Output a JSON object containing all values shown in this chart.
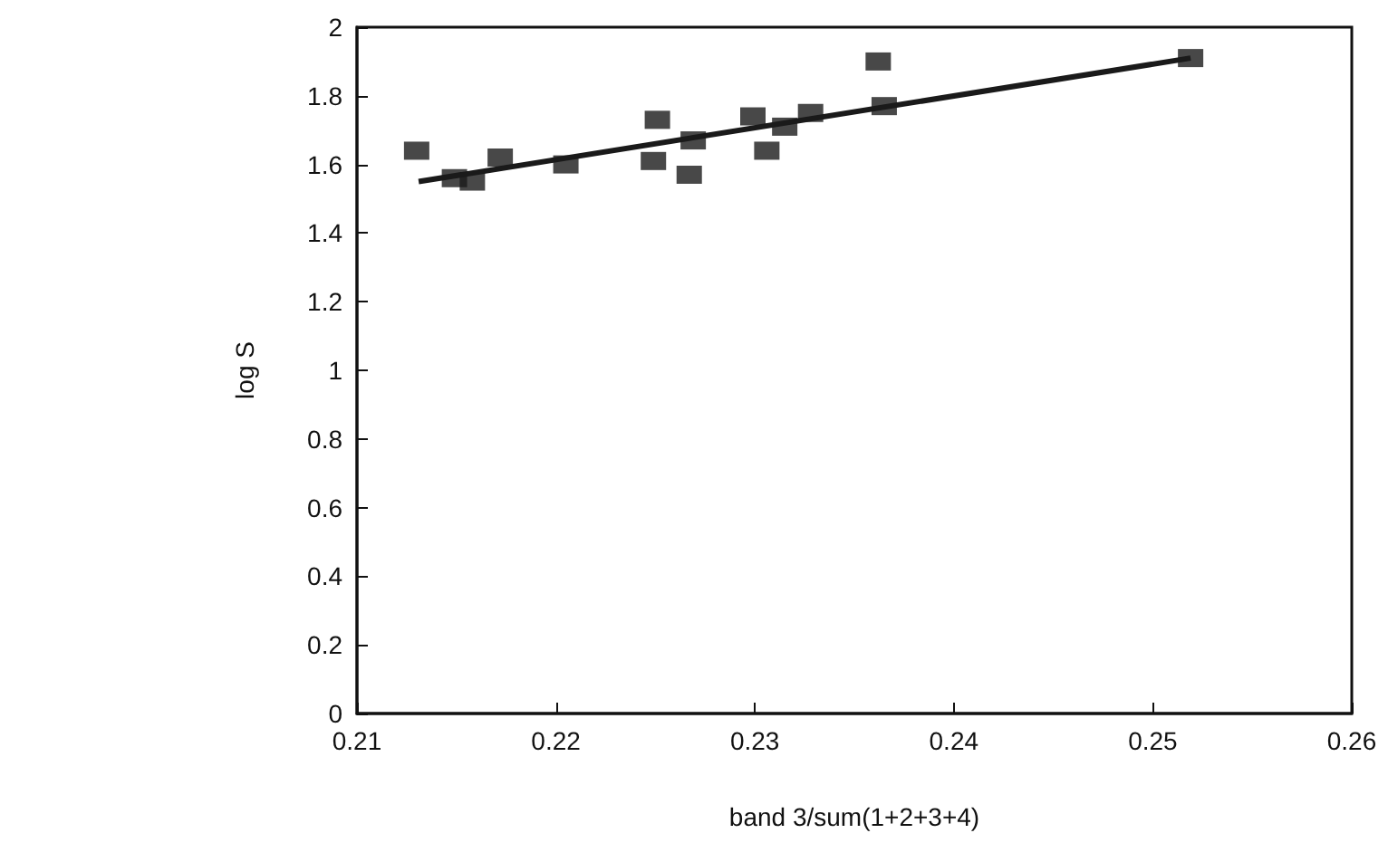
{
  "chart_data": {
    "type": "scatter",
    "xlabel": "band 3/sum(1+2+3+4)",
    "ylabel": "log S",
    "marker": "square",
    "grid": false,
    "xlim": [
      0.21,
      0.26
    ],
    "xticks": [
      0.21,
      0.22,
      0.23,
      0.24,
      0.25,
      0.26
    ],
    "ylim": [
      0,
      2
    ],
    "yticks": [
      0,
      0.2,
      0.4,
      0.6,
      0.8,
      1,
      1.2,
      1.4,
      1.6,
      1.8,
      2
    ],
    "series": [
      {
        "type": "scatter",
        "color": "#1a1a1a",
        "x": [
          0.213,
          0.2149,
          0.2158,
          0.2172,
          0.2205,
          0.2251,
          0.2249,
          0.2267,
          0.2269,
          0.2299,
          0.2306,
          0.2315,
          0.2328,
          0.2362,
          0.2365,
          0.2519
        ],
        "values": [
          1.64,
          1.56,
          1.55,
          1.62,
          1.6,
          1.73,
          1.61,
          1.57,
          1.67,
          1.74,
          1.64,
          1.71,
          1.75,
          1.9,
          1.77,
          1.91
        ]
      },
      {
        "type": "line",
        "color": "#1a1a1a",
        "marker": "none",
        "x": [
          0.2131,
          0.2519
        ],
        "values": [
          1.55,
          1.91
        ]
      }
    ]
  }
}
